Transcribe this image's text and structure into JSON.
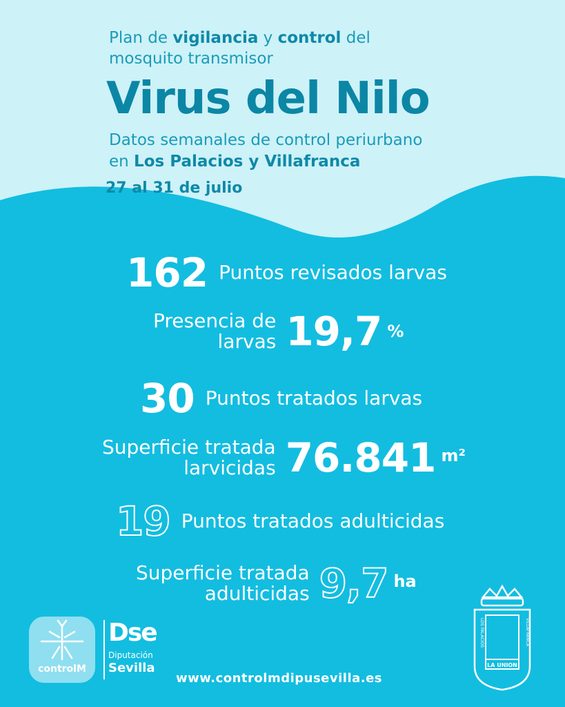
{
  "header": {
    "intro": {
      "parts": [
        "Plan de ",
        "vigilancia",
        " y ",
        "control",
        " del"
      ],
      "line2": "mosquito transmisor"
    },
    "title": "Virus del Nilo",
    "subtitle": {
      "line1": "Datos semanales de control periurbano",
      "line2_prefix": "en ",
      "line2_bold": "Los Palacios y Villafranca"
    },
    "date": "27 al 31 de julio"
  },
  "stats": [
    {
      "value": "162",
      "label": [
        "Puntos revisados larvas"
      ]
    },
    {
      "value": "19,7",
      "unit": "%",
      "label": [
        "Presencia de",
        "larvas"
      ]
    },
    {
      "value": "30",
      "label": [
        "Puntos tratados larvas"
      ]
    },
    {
      "value": "76.841",
      "unit": "m²",
      "label": [
        "Superficie tratada",
        "larvicidas"
      ]
    },
    {
      "value": "19",
      "label": [
        "Puntos tratados adulticidas"
      ]
    },
    {
      "value": "9,7",
      "unit": "ha",
      "label": [
        "Superficie tratada",
        "adulticidas"
      ]
    }
  ],
  "footer": {
    "logo1": "controlM",
    "logo2": {
      "mark": "Dse",
      "line1": "Diputación",
      "line2": "Sevilla"
    },
    "url": "www.controlmdipusevilla.es",
    "shield": {
      "left": "LOS PALACIOS",
      "right": "VILLAFRANCA",
      "banner": "LA UNION"
    }
  }
}
